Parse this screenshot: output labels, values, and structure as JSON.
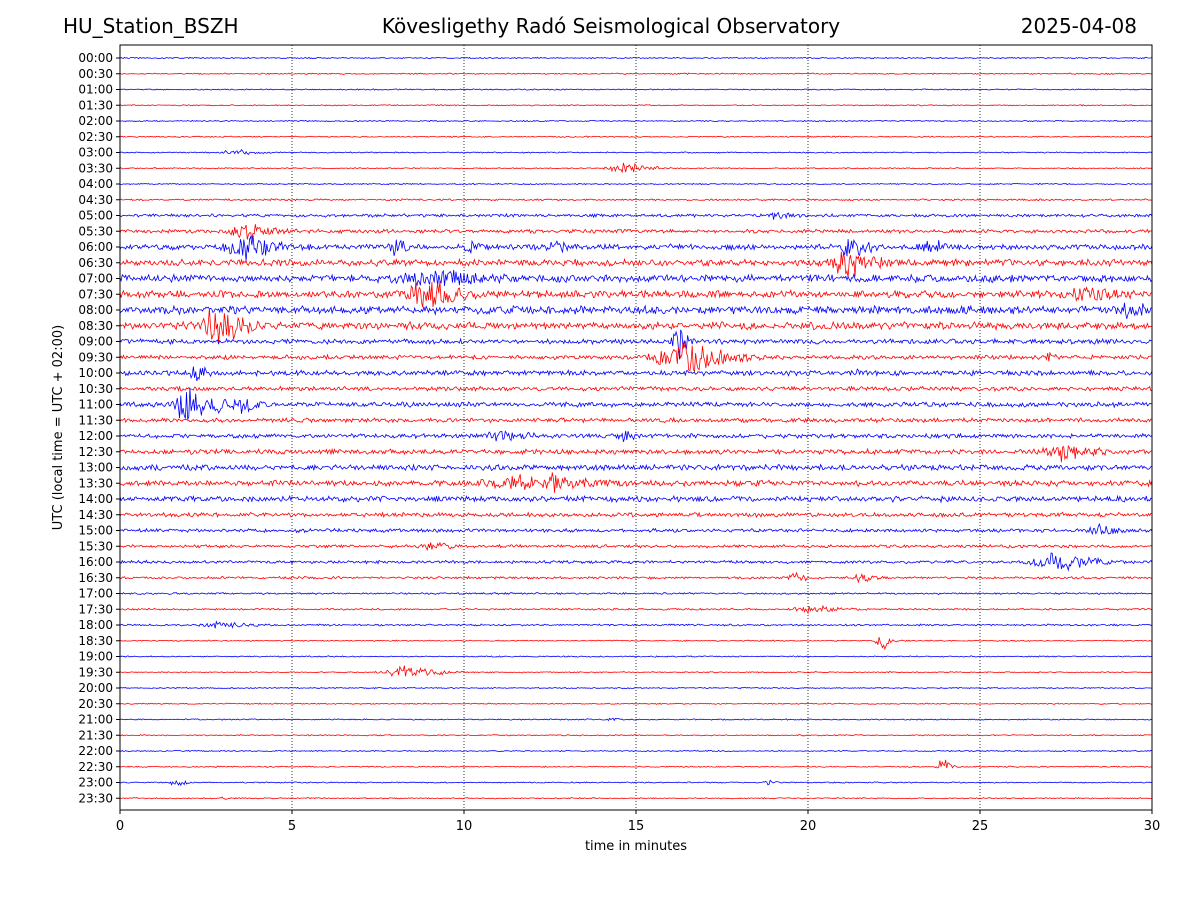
{
  "header": {
    "station": "HU_Station_BSZH",
    "observatory": "Kövesligethy Radó Seismological Observatory",
    "date": "2025-04-08"
  },
  "chart_data": {
    "type": "line",
    "xlabel": "time in minutes",
    "ylabel": "UTC (local time = UTC + 02:00)",
    "xlim": [
      0,
      30
    ],
    "x_ticks": [
      0,
      5,
      10,
      15,
      20,
      25,
      30
    ],
    "grid": "vertical dotted lines at 5-minute ticks",
    "colors": {
      "even_rows": "#0000ff",
      "odd_rows": "#ff0000"
    },
    "rows": [
      "00:00",
      "00:30",
      "01:00",
      "01:30",
      "02:00",
      "02:30",
      "03:00",
      "03:30",
      "04:00",
      "04:30",
      "05:00",
      "05:30",
      "06:00",
      "06:30",
      "07:00",
      "07:30",
      "08:00",
      "08:30",
      "09:00",
      "09:30",
      "10:00",
      "10:30",
      "11:00",
      "11:30",
      "12:00",
      "12:30",
      "13:00",
      "13:30",
      "14:00",
      "14:30",
      "15:00",
      "15:30",
      "16:00",
      "16:30",
      "17:00",
      "17:30",
      "18:00",
      "18:30",
      "19:00",
      "19:30",
      "20:00",
      "20:30",
      "21:00",
      "21:30",
      "22:00",
      "22:30",
      "23:00",
      "23:30"
    ],
    "noise_level": [
      1,
      1,
      1,
      1,
      1,
      1,
      1,
      1,
      1,
      1.5,
      2.5,
      3,
      4.5,
      5.5,
      6,
      6,
      6.5,
      6,
      4,
      3.5,
      4,
      3.5,
      4,
      3.5,
      3.5,
      4,
      4.5,
      4.5,
      4.5,
      3.5,
      3,
      2.5,
      2.5,
      2,
      1.5,
      1.5,
      1.5,
      1,
      1,
      1,
      1,
      1,
      1,
      1,
      1,
      1,
      1,
      1
    ],
    "events": [
      {
        "row": "03:00",
        "minute": 3.3,
        "amplitude": 3,
        "duration": 1.2
      },
      {
        "row": "03:30",
        "minute": 14.6,
        "amplitude": 5,
        "duration": 1.6
      },
      {
        "row": "05:00",
        "minute": 19.0,
        "amplitude": 3,
        "duration": 1.0
      },
      {
        "row": "05:30",
        "minute": 3.6,
        "amplitude": 8,
        "duration": 1.5
      },
      {
        "row": "06:00",
        "minute": 3.5,
        "amplitude": 14,
        "duration": 1.8
      },
      {
        "row": "06:00",
        "minute": 8.0,
        "amplitude": 8,
        "duration": 0.6
      },
      {
        "row": "06:00",
        "minute": 10.2,
        "amplitude": 6,
        "duration": 0.6
      },
      {
        "row": "06:00",
        "minute": 12.6,
        "amplitude": 6,
        "duration": 0.6
      },
      {
        "row": "06:00",
        "minute": 21.2,
        "amplitude": 10,
        "duration": 1.0
      },
      {
        "row": "06:00",
        "minute": 23.5,
        "amplitude": 6,
        "duration": 1.0
      },
      {
        "row": "06:30",
        "minute": 21.1,
        "amplitude": 14,
        "duration": 1.6
      },
      {
        "row": "07:00",
        "minute": 9.0,
        "amplitude": 7,
        "duration": 3.0
      },
      {
        "row": "07:30",
        "minute": 8.8,
        "amplitude": 13,
        "duration": 2.0
      },
      {
        "row": "07:30",
        "minute": 28.0,
        "amplitude": 6,
        "duration": 2.0
      },
      {
        "row": "08:00",
        "minute": 29.3,
        "amplitude": 7,
        "duration": 1.0
      },
      {
        "row": "08:30",
        "minute": 2.8,
        "amplitude": 22,
        "duration": 1.5
      },
      {
        "row": "09:00",
        "minute": 16.2,
        "amplitude": 20,
        "duration": 0.5
      },
      {
        "row": "09:30",
        "minute": 16.2,
        "amplitude": 18,
        "duration": 2.5
      },
      {
        "row": "09:30",
        "minute": 27.0,
        "amplitude": 6,
        "duration": 0.4
      },
      {
        "row": "10:00",
        "minute": 2.2,
        "amplitude": 18,
        "duration": 0.5
      },
      {
        "row": "10:00",
        "minute": 21.5,
        "amplitude": 5,
        "duration": 0.4
      },
      {
        "row": "11:00",
        "minute": 2.0,
        "amplitude": 22,
        "duration": 1.5
      },
      {
        "row": "11:00",
        "minute": 3.5,
        "amplitude": 9,
        "duration": 0.8
      },
      {
        "row": "12:00",
        "minute": 11.0,
        "amplitude": 6,
        "duration": 1.5
      },
      {
        "row": "12:00",
        "minute": 14.6,
        "amplitude": 5,
        "duration": 0.6
      },
      {
        "row": "12:30",
        "minute": 27.2,
        "amplitude": 9,
        "duration": 2.0
      },
      {
        "row": "13:30",
        "minute": 11.5,
        "amplitude": 8,
        "duration": 3.5
      },
      {
        "row": "13:30",
        "minute": 12.5,
        "amplitude": 12,
        "duration": 0.3
      },
      {
        "row": "15:00",
        "minute": 28.4,
        "amplitude": 5,
        "duration": 1.0
      },
      {
        "row": "15:30",
        "minute": 9.0,
        "amplitude": 4,
        "duration": 1.0
      },
      {
        "row": "16:00",
        "minute": 27.0,
        "amplitude": 12,
        "duration": 2.0
      },
      {
        "row": "16:30",
        "minute": 19.6,
        "amplitude": 6,
        "duration": 0.6
      },
      {
        "row": "16:30",
        "minute": 21.5,
        "amplitude": 5,
        "duration": 0.8
      },
      {
        "row": "17:30",
        "minute": 20.0,
        "amplitude": 4,
        "duration": 1.5
      },
      {
        "row": "18:00",
        "minute": 2.8,
        "amplitude": 4,
        "duration": 1.5
      },
      {
        "row": "18:30",
        "minute": 22.1,
        "amplitude": 12,
        "duration": 0.5
      },
      {
        "row": "19:30",
        "minute": 8.2,
        "amplitude": 7,
        "duration": 2.0
      },
      {
        "row": "21:00",
        "minute": 14.3,
        "amplitude": 3,
        "duration": 0.3
      },
      {
        "row": "22:30",
        "minute": 23.9,
        "amplitude": 10,
        "duration": 0.5
      },
      {
        "row": "23:00",
        "minute": 1.6,
        "amplitude": 4,
        "duration": 0.6
      },
      {
        "row": "23:00",
        "minute": 18.8,
        "amplitude": 3,
        "duration": 0.5
      },
      {
        "row": "23:30",
        "minute": 3.0,
        "amplitude": 3,
        "duration": 0.3
      }
    ]
  }
}
